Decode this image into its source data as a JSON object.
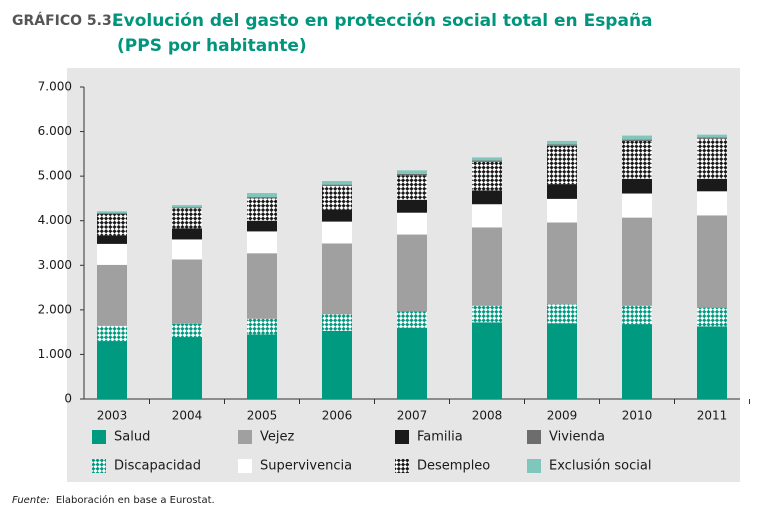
{
  "chart_data": {
    "type": "stacked_bar",
    "label": "GRÁFICO 5.3.",
    "title": "Evolución del gasto en protección social total en España",
    "subtitle": "(PPS por habitante)",
    "source_label": "Fuente:",
    "source": "Elaboración en base a Eurostat.",
    "categories": [
      "2003",
      "2004",
      "2005",
      "2006",
      "2007",
      "2008",
      "2009",
      "2010",
      "2011"
    ],
    "series": [
      {
        "name": "Salud",
        "color": "#009a80",
        "hatch": false,
        "values": [
          1300,
          1390,
          1450,
          1530,
          1600,
          1720,
          1700,
          1680,
          1630
        ]
      },
      {
        "name": "Discapacidad",
        "color": "#009a80",
        "hatch": true,
        "values": [
          340,
          300,
          350,
          370,
          370,
          370,
          420,
          410,
          420
        ]
      },
      {
        "name": "Vejez",
        "color": "#a0a0a0",
        "hatch": false,
        "values": [
          1370,
          1440,
          1470,
          1590,
          1720,
          1760,
          1840,
          1980,
          2070
        ]
      },
      {
        "name": "Supervivencia",
        "color": "#ffffff",
        "hatch": false,
        "values": [
          470,
          450,
          490,
          490,
          490,
          520,
          530,
          540,
          540
        ]
      },
      {
        "name": "Familia",
        "color": "#1a1a1a",
        "hatch": false,
        "values": [
          180,
          250,
          240,
          270,
          290,
          310,
          330,
          330,
          280
        ]
      },
      {
        "name": "Desempleo",
        "color": "#1a1a1a",
        "hatch": true,
        "values": [
          490,
          450,
          500,
          530,
          550,
          640,
          860,
          850,
          900
        ]
      },
      {
        "name": "Vivienda",
        "color": "#6d6d6d",
        "hatch": false,
        "values": [
          20,
          20,
          30,
          30,
          30,
          30,
          30,
          30,
          30
        ]
      },
      {
        "name": "Exclusión social",
        "color": "#7fc6bc",
        "hatch": false,
        "values": [
          40,
          50,
          90,
          80,
          80,
          70,
          80,
          90,
          60
        ]
      }
    ],
    "ylim": [
      0,
      7000
    ],
    "yticks": [
      0,
      {
        "value": 1000,
        "label": "1.000"
      },
      {
        "value": 2000,
        "label": "2.000"
      },
      {
        "value": 3000,
        "label": "3.000"
      },
      {
        "value": 4000,
        "label": "4.000"
      },
      {
        "value": 5000,
        "label": "5.000"
      },
      {
        "value": 6000,
        "label": "6.000"
      },
      {
        "value": 7000,
        "label": "7.000"
      }
    ],
    "grid": false
  }
}
